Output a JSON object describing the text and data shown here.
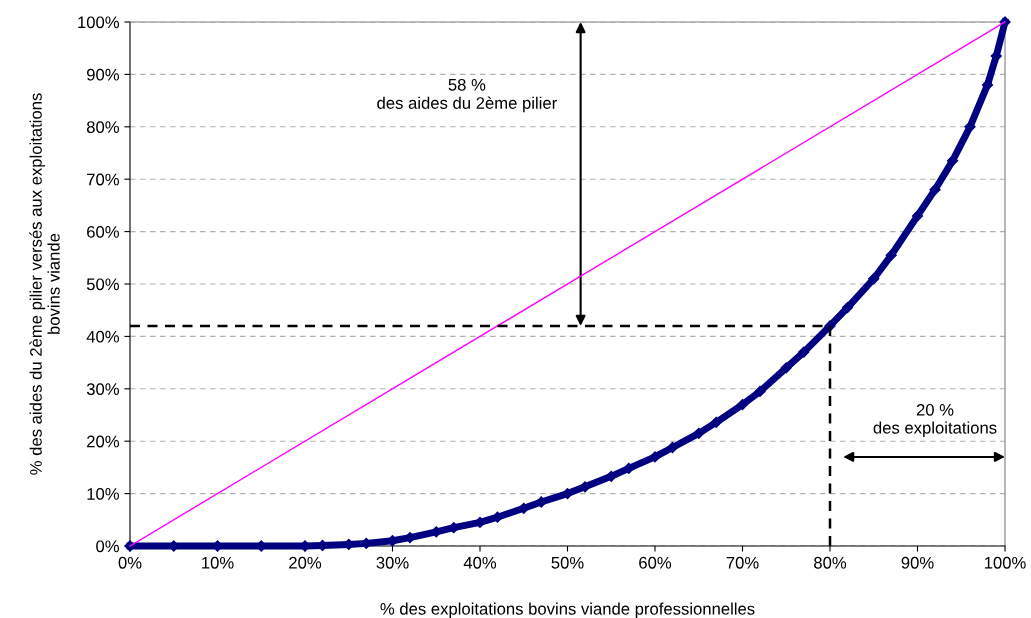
{
  "chart_data": {
    "type": "line",
    "xlabel": "% des exploitations bovins viande professionnelles",
    "ylabel": "% des aides du 2ème pilier versés aux exploitations\nbovins viande",
    "xlim": [
      0,
      100
    ],
    "ylim": [
      0,
      100
    ],
    "xticks": [
      {
        "value": 0,
        "label": "0%"
      },
      {
        "value": 10,
        "label": "10%"
      },
      {
        "value": 20,
        "label": "20%"
      },
      {
        "value": 30,
        "label": "30%"
      },
      {
        "value": 40,
        "label": "40%"
      },
      {
        "value": 50,
        "label": "50%"
      },
      {
        "value": 60,
        "label": "60%"
      },
      {
        "value": 70,
        "label": "70%"
      },
      {
        "value": 80,
        "label": "80%"
      },
      {
        "value": 90,
        "label": "90%"
      },
      {
        "value": 100,
        "label": "100%"
      }
    ],
    "yticks": [
      {
        "value": 0,
        "label": "0%"
      },
      {
        "value": 10,
        "label": "10%"
      },
      {
        "value": 20,
        "label": "20%"
      },
      {
        "value": 30,
        "label": "30%"
      },
      {
        "value": 40,
        "label": "40%"
      },
      {
        "value": 50,
        "label": "50%"
      },
      {
        "value": 60,
        "label": "60%"
      },
      {
        "value": 70,
        "label": "70%"
      },
      {
        "value": 80,
        "label": "80%"
      },
      {
        "value": 90,
        "label": "90%"
      },
      {
        "value": 100,
        "label": "100%"
      }
    ],
    "grid": "y",
    "marker": "diamond",
    "series": [
      {
        "color": "#ff00ff",
        "x": [
          0,
          100
        ],
        "values": [
          0,
          100
        ],
        "marker": "none",
        "line_style": "solid"
      },
      {
        "color": "#000000",
        "x": [
          0,
          80,
          80
        ],
        "values": [
          42,
          42,
          0
        ],
        "marker": "none",
        "line_style": "dashed"
      },
      {
        "color": "#000080",
        "x": [
          0,
          5,
          10,
          15,
          20,
          22,
          25,
          27,
          30,
          32,
          35,
          37,
          40,
          42,
          45,
          47,
          50,
          52,
          55,
          57,
          60,
          62,
          65,
          67,
          70,
          72,
          75,
          77,
          80,
          82,
          85,
          87,
          90,
          92,
          94,
          96,
          98,
          99,
          100
        ],
        "values": [
          0,
          0,
          0,
          0,
          0,
          0.1,
          0.3,
          0.5,
          1,
          1.6,
          2.7,
          3.5,
          4.5,
          5.5,
          7.2,
          8.4,
          10,
          11.3,
          13.3,
          14.8,
          17,
          18.8,
          21.5,
          23.6,
          27,
          29.5,
          34,
          37,
          42,
          45.5,
          51,
          55.5,
          63,
          68,
          73.5,
          80,
          88,
          93.5,
          100
        ],
        "line_style": "solid"
      }
    ],
    "annotations": [
      "58 %\ndes aides du 2ème pilier",
      "20 %\ndes exploitations"
    ]
  }
}
